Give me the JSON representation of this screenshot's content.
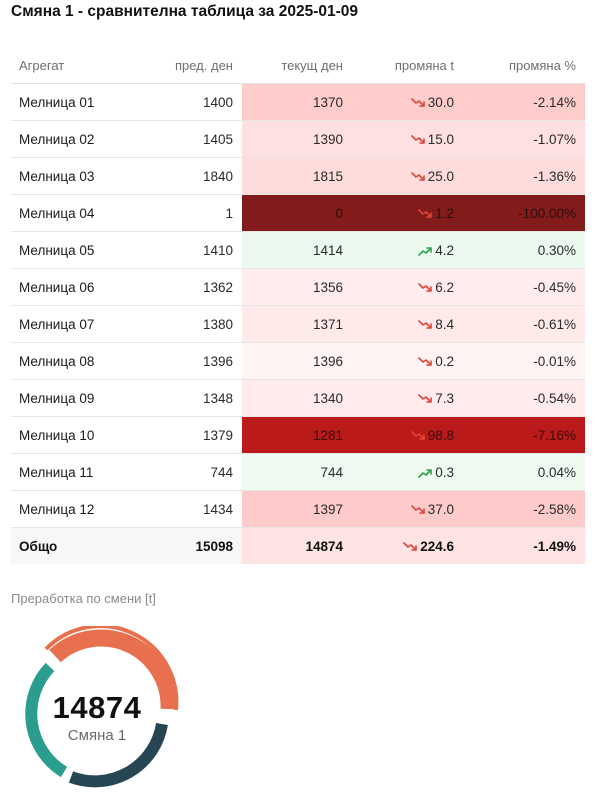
{
  "title": "Смяна 1 - сравнителна таблица за 2025-01-09",
  "colors": {
    "down_arrow": "#e0453a",
    "up_arrow": "#2fa14a",
    "gauge_orange": "#e8704f",
    "gauge_teal": "#2a9d8f",
    "gauge_dark": "#264653"
  },
  "table": {
    "headers": {
      "name": "Агрегат",
      "prev": "пред. ден",
      "cur": "текущ ден",
      "delta": "промяна t",
      "pct": "промяна %"
    },
    "rows": [
      {
        "name": "Мелница 01",
        "prev": "1400",
        "cur": "1370",
        "delta": "30.0",
        "pct": "-2.14%",
        "dir": "down",
        "bg": "#ffcccc",
        "fg": "#2a2a2a"
      },
      {
        "name": "Мелница 02",
        "prev": "1405",
        "cur": "1390",
        "delta": "15.0",
        "pct": "-1.07%",
        "dir": "down",
        "bg": "#ffe0e0",
        "fg": "#2a2a2a"
      },
      {
        "name": "Мелница 03",
        "prev": "1840",
        "cur": "1815",
        "delta": "25.0",
        "pct": "-1.36%",
        "dir": "down",
        "bg": "#ffdcdc",
        "fg": "#2a2a2a"
      },
      {
        "name": "Мелница 04",
        "prev": "1",
        "cur": "0",
        "delta": "1.2",
        "pct": "-100.00%",
        "dir": "down",
        "bg": "#831b1b",
        "fg": "#2a1010"
      },
      {
        "name": "Мелница 05",
        "prev": "1410",
        "cur": "1414",
        "delta": "4.2",
        "pct": "0.30%",
        "dir": "up",
        "bg": "#ebf9ee",
        "fg": "#2a2a2a"
      },
      {
        "name": "Мелница 06",
        "prev": "1362",
        "cur": "1356",
        "delta": "6.2",
        "pct": "-0.45%",
        "dir": "down",
        "bg": "#ffeded",
        "fg": "#2a2a2a"
      },
      {
        "name": "Мелница 07",
        "prev": "1380",
        "cur": "1371",
        "delta": "8.4",
        "pct": "-0.61%",
        "dir": "down",
        "bg": "#ffeaea",
        "fg": "#2a2a2a"
      },
      {
        "name": "Мелница 08",
        "prev": "1396",
        "cur": "1396",
        "delta": "0.2",
        "pct": "-0.01%",
        "dir": "down",
        "bg": "#fff3f3",
        "fg": "#2a2a2a"
      },
      {
        "name": "Мелница 09",
        "prev": "1348",
        "cur": "1340",
        "delta": "7.3",
        "pct": "-0.54%",
        "dir": "down",
        "bg": "#ffebeb",
        "fg": "#2a2a2a"
      },
      {
        "name": "Мелница 10",
        "prev": "1379",
        "cur": "1281",
        "delta": "98.8",
        "pct": "-7.16%",
        "dir": "down",
        "bg": "#bb1a1a",
        "fg": "#3a0c0c"
      },
      {
        "name": "Мелница 11",
        "prev": "744",
        "cur": "744",
        "delta": "0.3",
        "pct": "0.04%",
        "dir": "up",
        "bg": "#eefaf0",
        "fg": "#2a2a2a"
      },
      {
        "name": "Мелница 12",
        "prev": "1434",
        "cur": "1397",
        "delta": "37.0",
        "pct": "-2.58%",
        "dir": "down",
        "bg": "#ffcaca",
        "fg": "#2a2a2a"
      }
    ],
    "total": {
      "name": "Общо",
      "prev": "15098",
      "cur": "14874",
      "delta": "224.6",
      "pct": "-1.49%",
      "dir": "down",
      "bg": "#ffe2e2",
      "fg": "#111111"
    }
  },
  "gauge": {
    "label": "Преработка по смени [t]",
    "value": "14874",
    "sub": "Смяна 1"
  }
}
